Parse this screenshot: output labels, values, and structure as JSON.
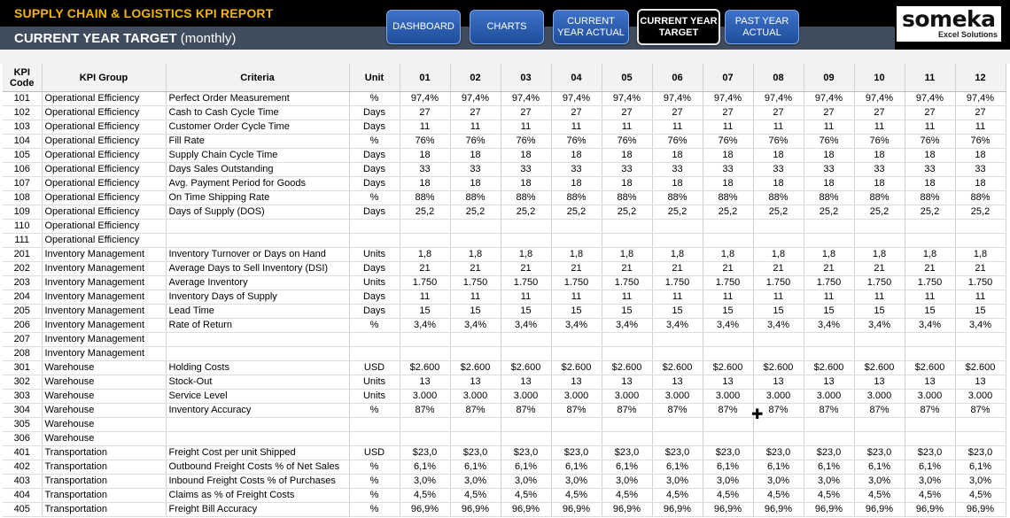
{
  "app": {
    "title": "SUPPLY CHAIN & LOGISTICS KPI REPORT",
    "subtitle_bold": "CURRENT YEAR TARGET",
    "subtitle_rest": "(monthly)"
  },
  "nav": [
    {
      "label": "DASHBOARD",
      "active": false
    },
    {
      "label": "CHARTS",
      "active": false
    },
    {
      "label": "CURRENT YEAR ACTUAL",
      "active": false
    },
    {
      "label": "CURRENT YEAR TARGET",
      "active": true
    },
    {
      "label": "PAST YEAR ACTUAL",
      "active": false
    }
  ],
  "logo": {
    "main": "someka",
    "sub": "Excel Solutions"
  },
  "table": {
    "headers": [
      "KPI Code",
      "KPI Group",
      "Criteria",
      "Unit",
      "01",
      "02",
      "03",
      "04",
      "05",
      "06",
      "07",
      "08",
      "09",
      "10",
      "11",
      "12"
    ],
    "rows": [
      {
        "code": "101",
        "group": "Operational Efficiency",
        "criteria": "Perfect Order Measurement",
        "unit": "%",
        "v": "97,4%"
      },
      {
        "code": "102",
        "group": "Operational Efficiency",
        "criteria": "Cash to Cash Cycle Time",
        "unit": "Days",
        "v": "27"
      },
      {
        "code": "103",
        "group": "Operational Efficiency",
        "criteria": "Customer Order Cycle Time",
        "unit": "Days",
        "v": "11"
      },
      {
        "code": "104",
        "group": "Operational Efficiency",
        "criteria": "Fill Rate",
        "unit": "%",
        "v": "76%"
      },
      {
        "code": "105",
        "group": "Operational Efficiency",
        "criteria": "Supply Chain Cycle Time",
        "unit": "Days",
        "v": "18"
      },
      {
        "code": "106",
        "group": "Operational Efficiency",
        "criteria": "Days Sales Outstanding",
        "unit": "Days",
        "v": "33"
      },
      {
        "code": "107",
        "group": "Operational Efficiency",
        "criteria": "Avg. Payment Period for Goods",
        "unit": "Days",
        "v": "18"
      },
      {
        "code": "108",
        "group": "Operational Efficiency",
        "criteria": "On Time Shipping Rate",
        "unit": "%",
        "v": "88%"
      },
      {
        "code": "109",
        "group": "Operational Efficiency",
        "criteria": "Days of Supply (DOS)",
        "unit": "Days",
        "v": "25,2"
      },
      {
        "code": "110",
        "group": "Operational Efficiency",
        "criteria": "",
        "unit": "",
        "v": ""
      },
      {
        "code": "111",
        "group": "Operational Efficiency",
        "criteria": "",
        "unit": "",
        "v": ""
      },
      {
        "code": "201",
        "group": "Inventory Management",
        "criteria": "Inventory Turnover or Days on Hand",
        "unit": "Units",
        "v": "1,8"
      },
      {
        "code": "202",
        "group": "Inventory Management",
        "criteria": "Average Days to Sell Inventory (DSI)",
        "unit": "Days",
        "v": "21"
      },
      {
        "code": "203",
        "group": "Inventory Management",
        "criteria": "Average Inventory",
        "unit": "Units",
        "v": "1.750"
      },
      {
        "code": "204",
        "group": "Inventory Management",
        "criteria": "Inventory Days of Supply",
        "unit": "Days",
        "v": "11"
      },
      {
        "code": "205",
        "group": "Inventory Management",
        "criteria": "Lead Time",
        "unit": "Days",
        "v": "15"
      },
      {
        "code": "206",
        "group": "Inventory Management",
        "criteria": "Rate of Return",
        "unit": "%",
        "v": "3,4%"
      },
      {
        "code": "207",
        "group": "Inventory Management",
        "criteria": "",
        "unit": "",
        "v": ""
      },
      {
        "code": "208",
        "group": "Inventory Management",
        "criteria": "",
        "unit": "",
        "v": ""
      },
      {
        "code": "301",
        "group": "Warehouse",
        "criteria": "Holding Costs",
        "unit": "USD",
        "v": "$2.600"
      },
      {
        "code": "302",
        "group": "Warehouse",
        "criteria": "Stock-Out",
        "unit": "Units",
        "v": "13"
      },
      {
        "code": "303",
        "group": "Warehouse",
        "criteria": "Service Level",
        "unit": "Units",
        "v": "3.000"
      },
      {
        "code": "304",
        "group": "Warehouse",
        "criteria": "Inventory Accuracy",
        "unit": "%",
        "v": "87%"
      },
      {
        "code": "305",
        "group": "Warehouse",
        "criteria": "",
        "unit": "",
        "v": ""
      },
      {
        "code": "306",
        "group": "Warehouse",
        "criteria": "",
        "unit": "",
        "v": ""
      },
      {
        "code": "401",
        "group": "Transportation",
        "criteria": "Freight Cost per unit Shipped",
        "unit": "USD",
        "v": "$23,0"
      },
      {
        "code": "402",
        "group": "Transportation",
        "criteria": "Outbound Freight Costs % of Net Sales",
        "unit": "%",
        "v": "6,1%"
      },
      {
        "code": "403",
        "group": "Transportation",
        "criteria": "Inbound Freight Costs % of Purchases",
        "unit": "%",
        "v": "3,0%"
      },
      {
        "code": "404",
        "group": "Transportation",
        "criteria": "Claims as % of Freight Costs",
        "unit": "%",
        "v": "4,5%"
      },
      {
        "code": "405",
        "group": "Transportation",
        "criteria": "Freight Bill Accuracy",
        "unit": "%",
        "v": "96,9%"
      }
    ]
  }
}
